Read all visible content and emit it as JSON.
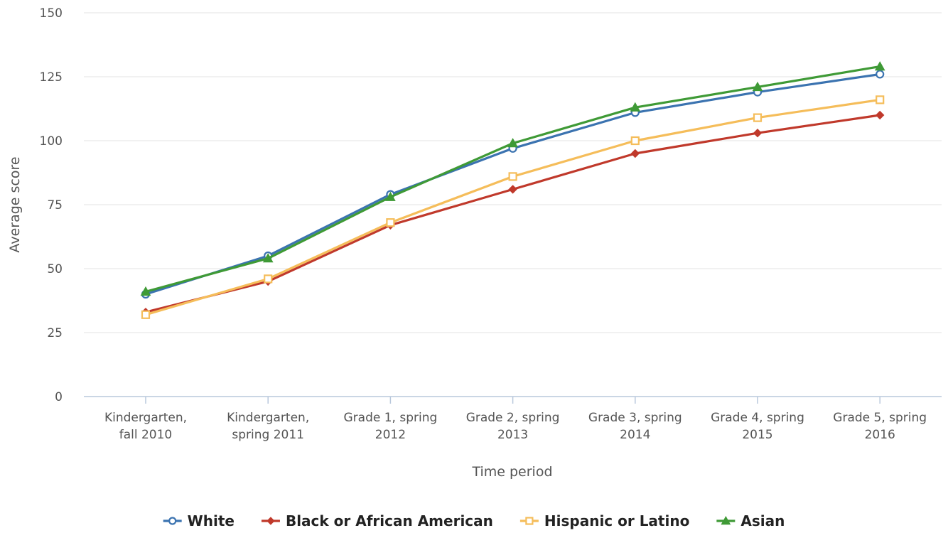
{
  "chart_data": {
    "type": "line",
    "xlabel": "Time period",
    "ylabel": "Average score",
    "ylim": [
      0,
      150
    ],
    "yticks": [
      0,
      25,
      50,
      75,
      100,
      125,
      150
    ],
    "grid": true,
    "legend_position": "bottom",
    "categories": [
      [
        "Kindergarten,",
        "fall 2010"
      ],
      [
        "Kindergarten,",
        "spring 2011"
      ],
      [
        "Grade 1, spring",
        "2012"
      ],
      [
        "Grade 2, spring",
        "2013"
      ],
      [
        "Grade 3, spring",
        "2014"
      ],
      [
        "Grade 4, spring",
        "2015"
      ],
      [
        "Grade 5, spring",
        "2016"
      ]
    ],
    "series": [
      {
        "name": "White",
        "color": "#3b73b0",
        "marker": "circle",
        "values": [
          40,
          55,
          79,
          97,
          111,
          119,
          126
        ]
      },
      {
        "name": "Black or African American",
        "color": "#c0392b",
        "marker": "diamond",
        "values": [
          33,
          45,
          67,
          81,
          95,
          103,
          110
        ]
      },
      {
        "name": "Hispanic or Latino",
        "color": "#f5bd5a",
        "marker": "square",
        "values": [
          32,
          46,
          68,
          86,
          100,
          109,
          116
        ]
      },
      {
        "name": "Asian",
        "color": "#3f9a36",
        "marker": "triangle",
        "values": [
          41,
          54,
          78,
          99,
          113,
          121,
          129
        ]
      }
    ]
  }
}
